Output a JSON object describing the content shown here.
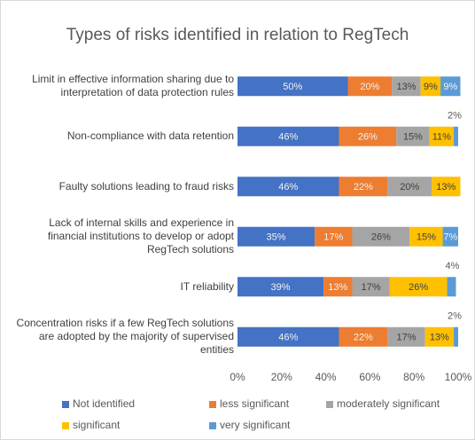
{
  "chart_data": {
    "type": "stacked-bar-horizontal",
    "title": "Types of risks identified in relation to RegTech",
    "categories": [
      "Limit in effective information sharing due to interpretation of data protection rules",
      "Non-compliance with data retention",
      "Faulty solutions leading to fraud risks",
      "Lack of internal skills and experience in financial institutions to develop or adopt RegTech solutions",
      "IT reliability",
      "Concentration risks if a few RegTech solutions are adopted by the majority of supervised entities"
    ],
    "series": [
      {
        "name": "Not identified",
        "color": "#4472c4",
        "values": [
          50,
          46,
          46,
          35,
          39,
          46
        ],
        "value_labels": [
          "50%",
          "46%",
          "46%",
          "35%",
          "39%",
          "46%"
        ]
      },
      {
        "name": "less significant",
        "color": "#ed7d31",
        "values": [
          20,
          26,
          22,
          17,
          13,
          22
        ],
        "value_labels": [
          "20%",
          "26%",
          "22%",
          "17%",
          "13%",
          "22%"
        ]
      },
      {
        "name": "moderately significant",
        "color": "#a5a5a5",
        "values": [
          13,
          15,
          20,
          26,
          17,
          17
        ],
        "value_labels": [
          "13%",
          "15%",
          "20%",
          "26%",
          "17%",
          "17%"
        ]
      },
      {
        "name": "significant",
        "color": "#ffc000",
        "values": [
          9,
          11,
          13,
          15,
          26,
          13
        ],
        "value_labels": [
          "9%",
          "11%",
          "13%",
          "15%",
          "26%",
          "13%"
        ]
      },
      {
        "name": "very significant",
        "color": "#5b9bd5",
        "values": [
          9,
          2,
          null,
          7,
          4,
          2
        ],
        "value_labels": [
          "9%",
          "2%",
          null,
          "7%",
          "4%",
          "2%"
        ]
      }
    ],
    "xlim": [
      0,
      100
    ],
    "xticks": [
      {
        "value": 0,
        "label": "0%"
      },
      {
        "value": 20,
        "label": "20%"
      },
      {
        "value": 40,
        "label": "40%"
      },
      {
        "value": 60,
        "label": "60%"
      },
      {
        "value": 80,
        "label": "80%"
      },
      {
        "value": 100,
        "label": "100%"
      }
    ]
  }
}
